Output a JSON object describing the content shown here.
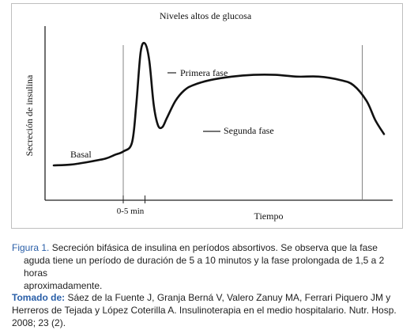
{
  "chart_data": {
    "type": "line",
    "title": "Niveles altos de glucosa",
    "xlabel": "Tiempo",
    "ylabel": "Secreción de insulina",
    "xticks": [
      "0-5 min"
    ],
    "annotations": [
      "Basal",
      "Primera fase",
      "Segunda fase"
    ],
    "x_unit": "min",
    "xlim": [
      -18,
      62
    ],
    "ylim": [
      0,
      100
    ],
    "glucose_window_min": [
      0,
      55
    ],
    "grid": false,
    "series": [
      {
        "x": [
          -16,
          -12,
          -8,
          -4,
          -2,
          0,
          2,
          3,
          4,
          5,
          6,
          7,
          8,
          9,
          10,
          12,
          14,
          16,
          20,
          25,
          30,
          35,
          40,
          45,
          50,
          53,
          56,
          58,
          60
        ],
        "y": [
          20,
          20.5,
          22,
          24,
          26,
          28,
          33,
          55,
          85,
          90,
          80,
          55,
          43,
          42,
          47,
          57,
          63,
          66,
          69,
          71,
          72,
          72,
          71,
          71,
          69,
          66,
          57,
          46,
          38
        ]
      }
    ]
  },
  "caption": {
    "label": "Figura 1.",
    "line1": " Secreción bifásica de insulina en períodos absortivos. Se observa que la fase",
    "line2": "aguda tiene un período de duración de 5 a 10 minutos y la fase prolongada de 1,5 a 2 horas",
    "line3": "aproximadamente."
  },
  "source": {
    "label": "Tomado de:",
    "line1": " Sáez de la Fuente J, Granja Berná V, Valero Zanuy MA, Ferrari Piquero JM y",
    "line2": "Herreros de Tejada y López Coterilla A. Insulinoterapia en el medio hospitalario. Nutr. Hosp.",
    "line3": "2008; 23 (2)."
  }
}
